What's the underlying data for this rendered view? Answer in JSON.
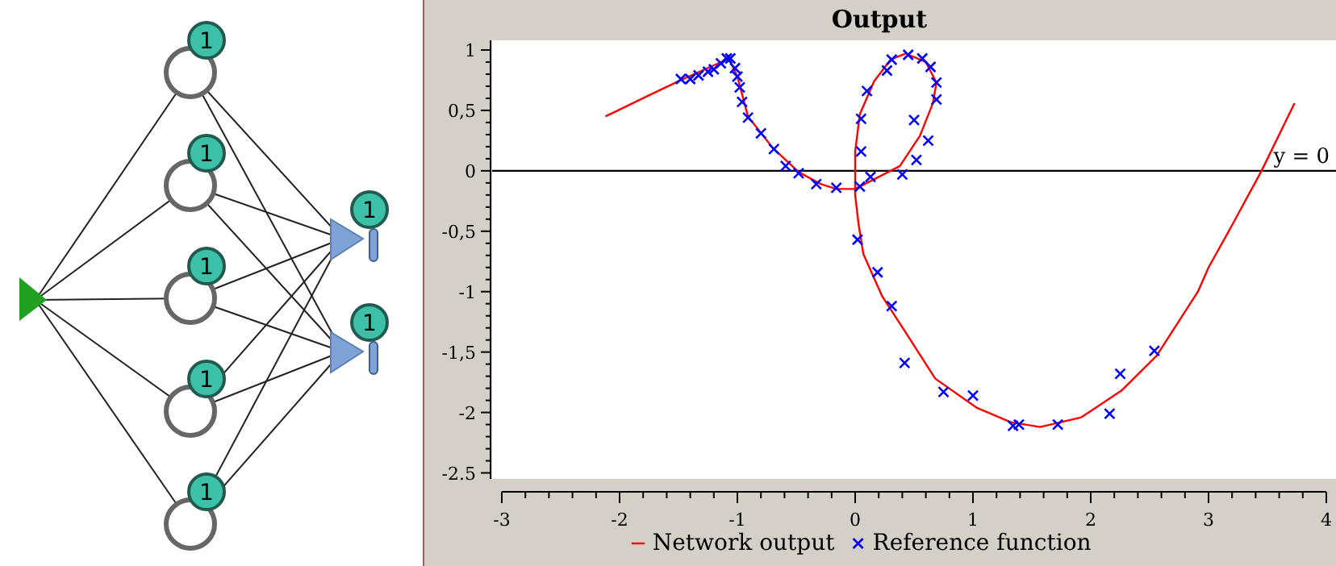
{
  "chart_data": {
    "type": "line",
    "title": "Output",
    "xlim": [
      -3,
      4
    ],
    "ylim": [
      -2.55,
      1.08
    ],
    "xticks": [
      -3,
      {
        "value": -2.8,
        "label": null
      },
      {
        "value": -2.6,
        "label": null
      },
      {
        "value": -2.4,
        "label": null
      },
      {
        "value": -2.2,
        "label": null
      },
      -2,
      {
        "value": -1.8,
        "label": null
      },
      {
        "value": -1.6,
        "label": null
      },
      {
        "value": -1.4,
        "label": null
      },
      {
        "value": -1.2,
        "label": null
      },
      -1,
      {
        "value": -0.8,
        "label": null
      },
      {
        "value": -0.6,
        "label": null
      },
      {
        "value": -0.4,
        "label": null
      },
      {
        "value": -0.2,
        "label": null
      },
      0,
      {
        "value": 0.2,
        "label": null
      },
      {
        "value": 0.4,
        "label": null
      },
      {
        "value": 0.6,
        "label": null
      },
      {
        "value": 0.8,
        "label": null
      },
      1,
      {
        "value": 1.2,
        "label": null
      },
      {
        "value": 1.4,
        "label": null
      },
      {
        "value": 1.6,
        "label": null
      },
      {
        "value": 1.8,
        "label": null
      },
      2,
      {
        "value": 2.2,
        "label": null
      },
      {
        "value": 2.4,
        "label": null
      },
      {
        "value": 2.6,
        "label": null
      },
      {
        "value": 2.8,
        "label": null
      },
      3,
      {
        "value": 3.2,
        "label": null
      },
      {
        "value": 3.4,
        "label": null
      },
      {
        "value": 3.6,
        "label": null
      },
      {
        "value": 3.8,
        "label": null
      },
      4
    ],
    "yticks": [
      {
        "value": -2.5,
        "label": "-2.5"
      },
      {
        "value": -2.4,
        "label": null
      },
      {
        "value": -2.3,
        "label": null
      },
      {
        "value": -2.2,
        "label": null
      },
      {
        "value": -2.1,
        "label": null
      },
      -2,
      {
        "value": -1.9,
        "label": null
      },
      {
        "value": -1.8,
        "label": null
      },
      {
        "value": -1.7,
        "label": null
      },
      {
        "value": -1.6,
        "label": null
      },
      {
        "value": -1.5,
        "label": "-1,5"
      },
      {
        "value": -1.4,
        "label": null
      },
      {
        "value": -1.3,
        "label": null
      },
      {
        "value": -1.2,
        "label": null
      },
      {
        "value": -1.1,
        "label": null
      },
      -1,
      {
        "value": -0.9,
        "label": null
      },
      {
        "value": -0.8,
        "label": null
      },
      {
        "value": -0.7,
        "label": null
      },
      {
        "value": -0.6,
        "label": null
      },
      {
        "value": -0.5,
        "label": "-0,5"
      },
      {
        "value": -0.4,
        "label": null
      },
      {
        "value": -0.3,
        "label": null
      },
      {
        "value": -0.2,
        "label": null
      },
      {
        "value": -0.1,
        "label": null
      },
      0,
      {
        "value": 0.1,
        "label": null
      },
      {
        "value": 0.2,
        "label": null
      },
      {
        "value": 0.3,
        "label": null
      },
      {
        "value": 0.4,
        "label": null
      },
      {
        "value": 0.5,
        "label": "0,5"
      },
      {
        "value": 0.6,
        "label": null
      },
      {
        "value": 0.7,
        "label": null
      },
      {
        "value": 0.8,
        "label": null
      },
      {
        "value": 0.9,
        "label": null
      },
      1
    ],
    "legend": "bottom",
    "ref_lines": [
      {
        "axis": "y",
        "value": 0,
        "label": "y = 0",
        "color": "#000000"
      }
    ],
    "annotations": [
      "1",
      "1",
      "1",
      "1",
      "1",
      "1",
      "1"
    ],
    "series": [
      {
        "name": "Network output",
        "color": "#ff0000",
        "marker": "none",
        "x": [
          -2.12,
          -1.76,
          -1.48,
          -1.07,
          -1.0,
          -0.91,
          -0.7,
          -0.48,
          -0.29,
          -0.16,
          0.0,
          0.18,
          0.38,
          0.55,
          0.66,
          0.69,
          0.6,
          0.43,
          0.3,
          0.16,
          0.04,
          0.0,
          0.0,
          0.03,
          0.07,
          0.23,
          0.43,
          0.68,
          1.03,
          1.32,
          1.57,
          1.92,
          2.26,
          2.56,
          2.91,
          3.0,
          3.2,
          3.45,
          3.73
        ],
        "values": [
          0.45,
          0.62,
          0.75,
          0.93,
          0.78,
          0.45,
          0.19,
          -0.01,
          -0.11,
          -0.15,
          -0.15,
          -0.06,
          0.04,
          0.29,
          0.56,
          0.73,
          0.9,
          0.97,
          0.92,
          0.74,
          0.47,
          0.16,
          -0.2,
          -0.45,
          -0.69,
          -1.04,
          -1.34,
          -1.72,
          -1.96,
          -2.08,
          -2.12,
          -2.04,
          -1.82,
          -1.53,
          -1.0,
          -0.8,
          -0.45,
          0.0,
          0.56
        ]
      },
      {
        "name": "Reference function",
        "type": "scatter",
        "color": "#0000ff",
        "marker": "cross",
        "x": [
          -1.48,
          -1.4,
          -1.33,
          -1.25,
          -1.2,
          -1.14,
          -1.09,
          -1.06,
          -1.02,
          -1.0,
          -0.98,
          -0.96,
          -0.91,
          -0.8,
          -0.69,
          -0.59,
          -0.48,
          -0.33,
          -0.16,
          0.04,
          0.05,
          0.05,
          0.1,
          0.13,
          0.02,
          0.27,
          0.31,
          0.45,
          0.57,
          0.64,
          0.69,
          0.69,
          0.5,
          0.62,
          0.52,
          0.4,
          0.19,
          0.31,
          0.42,
          0.75,
          1.0,
          1.34,
          1.39,
          1.72,
          2.16,
          2.25,
          2.54
        ],
        "values": [
          0.76,
          0.76,
          0.79,
          0.82,
          0.84,
          0.89,
          0.93,
          0.93,
          0.85,
          0.78,
          0.69,
          0.57,
          0.44,
          0.31,
          0.18,
          0.04,
          -0.02,
          -0.11,
          -0.14,
          -0.13,
          0.16,
          0.43,
          0.66,
          -0.05,
          -0.57,
          0.83,
          0.92,
          0.96,
          0.93,
          0.86,
          0.73,
          0.59,
          0.42,
          0.25,
          0.09,
          -0.03,
          -0.84,
          -1.12,
          -1.59,
          -1.83,
          -1.86,
          -2.11,
          -2.1,
          -2.1,
          -2.01,
          -1.68,
          -1.49
        ]
      }
    ]
  }
}
